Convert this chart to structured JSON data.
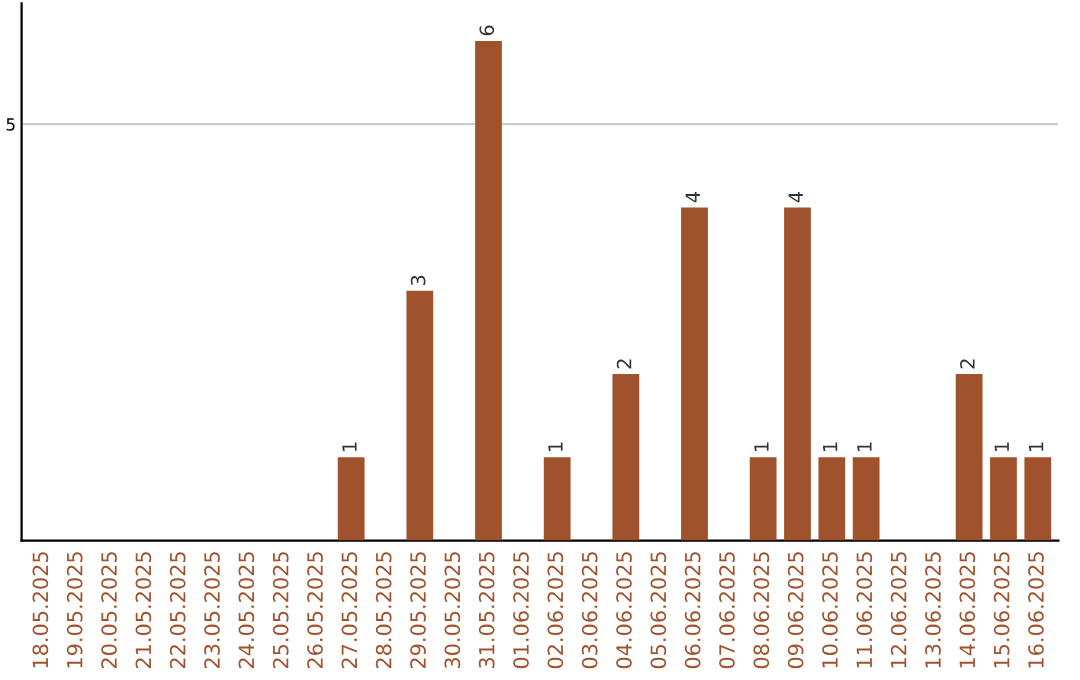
{
  "chart_data": {
    "type": "bar",
    "categories": [
      "18.05.2025",
      "19.05.2025",
      "20.05.2025",
      "21.05.2025",
      "22.05.2025",
      "23.05.2025",
      "24.05.2025",
      "25.05.2025",
      "26.05.2025",
      "27.05.2025",
      "28.05.2025",
      "29.05.2025",
      "30.05.2025",
      "31.05.2025",
      "01.06.2025",
      "02.06.2025",
      "03.06.2025",
      "04.06.2025",
      "05.06.2025",
      "06.06.2025",
      "07.06.2025",
      "08.06.2025",
      "09.06.2025",
      "10.06.2025",
      "11.06.2025",
      "12.06.2025",
      "13.06.2025",
      "14.06.2025",
      "15.06.2025",
      "16.06.2025"
    ],
    "values": [
      0,
      0,
      0,
      0,
      0,
      0,
      0,
      0,
      0,
      1,
      0,
      3,
      0,
      6,
      0,
      1,
      0,
      2,
      0,
      4,
      0,
      1,
      4,
      1,
      1,
      0,
      0,
      2,
      1,
      1
    ],
    "value_labels": [
      null,
      null,
      null,
      null,
      null,
      null,
      null,
      null,
      null,
      "1",
      null,
      "3",
      null,
      "6",
      null,
      "1",
      null,
      "2",
      null,
      "4",
      null,
      "1",
      "4",
      "1",
      "1",
      null,
      null,
      "2",
      "1",
      "1"
    ],
    "color": "#a0522d",
    "ylim": [
      0,
      6.45
    ],
    "yticks": [
      5
    ],
    "grid": "y"
  }
}
